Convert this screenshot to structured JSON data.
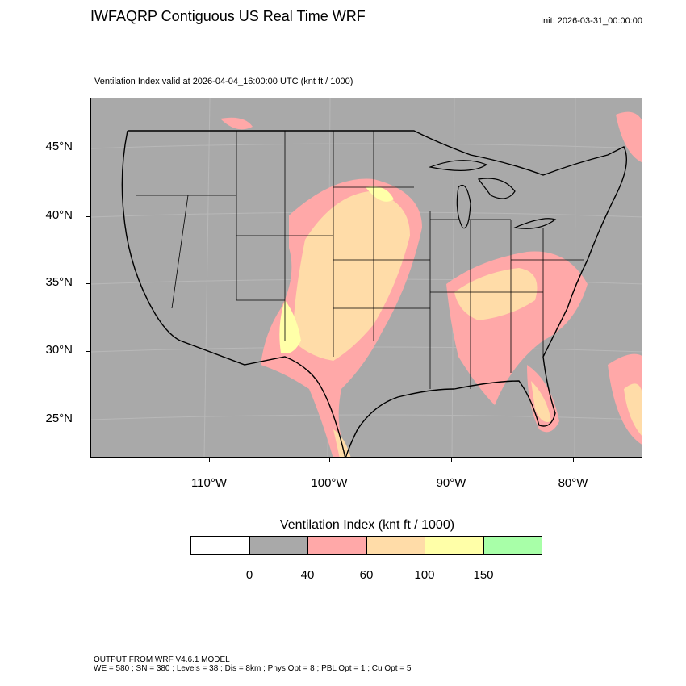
{
  "header": {
    "title": "IWFAQRP Contiguous US Real Time WRF",
    "init": "Init: 2026-03-31_00:00:00",
    "subtitle": "Ventilation Index valid at 2026-04-04_16:00:00 UTC   (knt ft / 1000)"
  },
  "axes": {
    "lat_labels": [
      "45°N",
      "40°N",
      "35°N",
      "30°N",
      "25°N"
    ],
    "lon_labels": [
      "110°W",
      "100°W",
      "90°W",
      "80°W"
    ]
  },
  "legend": {
    "title": "Ventilation Index  (knt ft / 1000)",
    "colors": [
      "#ffffff",
      "#a9a9a9",
      "#ffa8a8",
      "#ffdca8",
      "#ffffa8",
      "#a8ffa8"
    ],
    "tick_labels": [
      "0",
      "40",
      "60",
      "100",
      "150"
    ]
  },
  "footer": {
    "line1": "OUTPUT FROM WRF V4.6.1 MODEL",
    "line2": "WE = 580 ; SN = 380 ; Levels = 38 ; Dis = 8km ; Phys Opt = 8 ; PBL Opt = 1 ; Cu Opt = 5"
  },
  "map_colors": {
    "background": "#a9a9a9",
    "low": "#ffa8a8",
    "mid": "#ffdca8",
    "high": "#ffffa8"
  }
}
